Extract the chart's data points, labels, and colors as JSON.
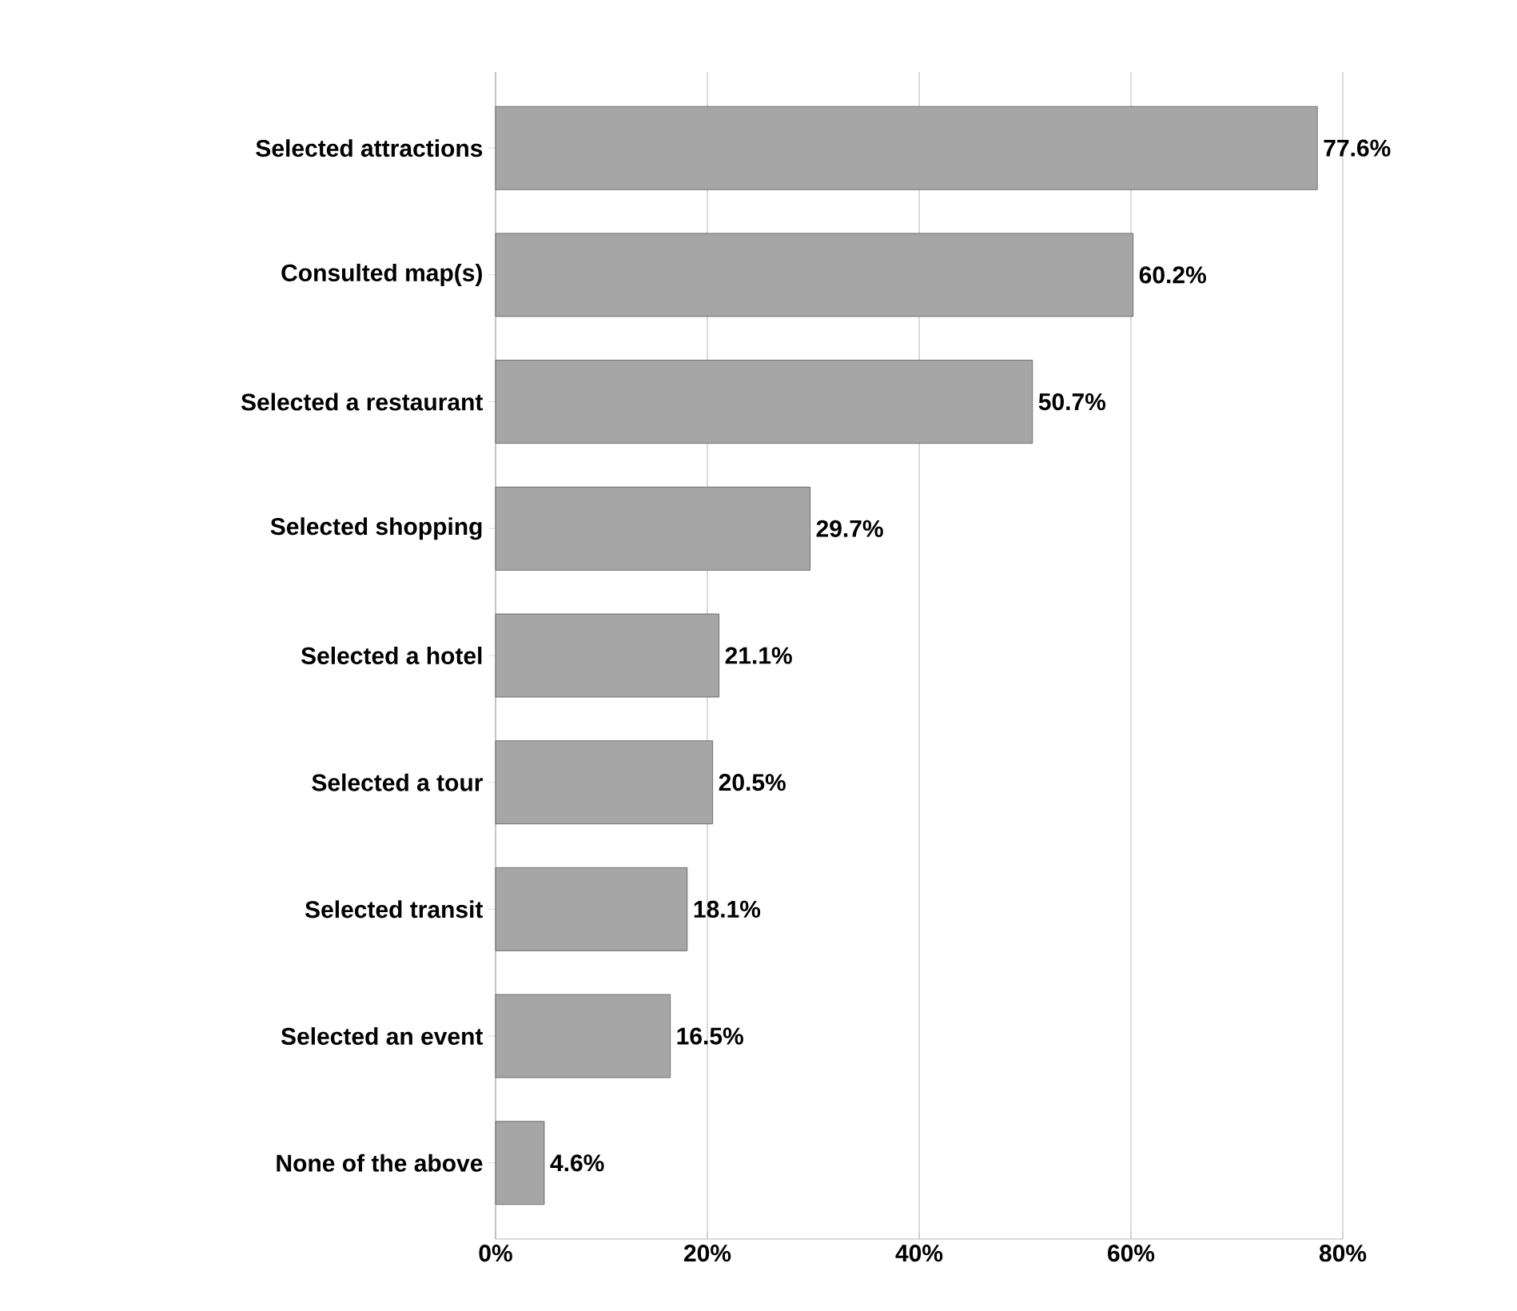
{
  "chart_data": {
    "type": "bar",
    "orientation": "horizontal",
    "categories": [
      "Selected attractions",
      "Consulted map(s)",
      "Selected a restaurant",
      "Selected shopping",
      "Selected a hotel",
      "Selected a tour",
      "Selected transit",
      "Selected an event",
      "None of the above"
    ],
    "values": [
      77.6,
      60.2,
      50.7,
      29.7,
      21.1,
      20.5,
      18.1,
      16.5,
      4.6
    ],
    "value_labels": [
      "77.6%",
      "60.2%",
      "50.7%",
      "29.7%",
      "21.1%",
      "20.5%",
      "18.1%",
      "16.5%",
      "4.6%"
    ],
    "color": "#a6a6a6",
    "xlim": [
      0,
      80
    ],
    "xticks": [
      {
        "value": 0,
        "label": "0%"
      },
      {
        "value": 20,
        "label": "20%"
      },
      {
        "value": 40,
        "label": "40%"
      },
      {
        "value": 60,
        "label": "60%"
      },
      {
        "value": 80,
        "label": "80%"
      }
    ],
    "grid": "x"
  }
}
